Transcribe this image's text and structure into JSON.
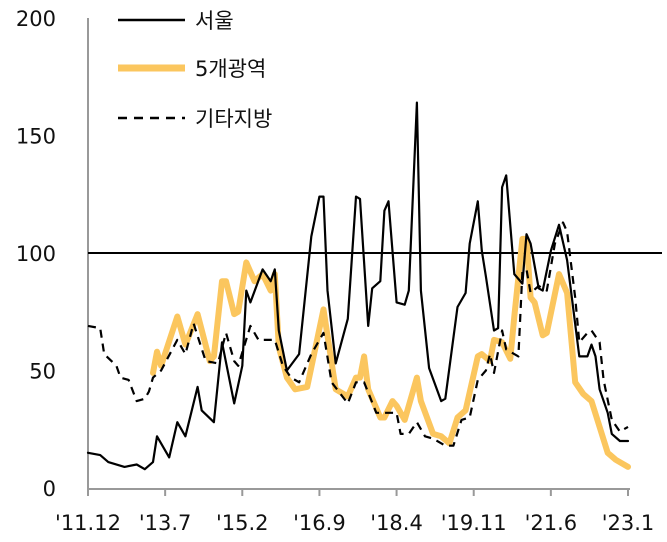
{
  "chart_data": {
    "type": "line",
    "title": "",
    "xlabel": "",
    "ylabel": "",
    "x_unit": "months since 2011.12",
    "xlim": [
      0,
      133
    ],
    "ylim": [
      0,
      200
    ],
    "yticks": [
      0,
      50,
      100,
      150,
      200
    ],
    "xticks": [
      {
        "m": 0,
        "label": "'11.12"
      },
      {
        "m": 19,
        "label": "'13.7"
      },
      {
        "m": 38,
        "label": "'15.2"
      },
      {
        "m": 57,
        "label": "'16.9"
      },
      {
        "m": 76,
        "label": "'18.4"
      },
      {
        "m": 95,
        "label": "'19.11"
      },
      {
        "m": 114,
        "label": "'21.6"
      },
      {
        "m": 133,
        "label": "'23.1"
      }
    ],
    "reference_line": 100,
    "legend_position": "top-left",
    "grid": false,
    "series": [
      {
        "name": "서울",
        "color": "#000000",
        "style": "solid",
        "points": [
          [
            0,
            15
          ],
          [
            3,
            14
          ],
          [
            5,
            11
          ],
          [
            9,
            9
          ],
          [
            12,
            10
          ],
          [
            14,
            8
          ],
          [
            16,
            11
          ],
          [
            17,
            22
          ],
          [
            20,
            13
          ],
          [
            22,
            28
          ],
          [
            24,
            22
          ],
          [
            27,
            43
          ],
          [
            28,
            33
          ],
          [
            31,
            28
          ],
          [
            33,
            62
          ],
          [
            36,
            36
          ],
          [
            38,
            52
          ],
          [
            39,
            84
          ],
          [
            40,
            79
          ],
          [
            43,
            93
          ],
          [
            45,
            88
          ],
          [
            46,
            93
          ],
          [
            47,
            67
          ],
          [
            49,
            50
          ],
          [
            52,
            57
          ],
          [
            55,
            107
          ],
          [
            57,
            124
          ],
          [
            58,
            124
          ],
          [
            59,
            84
          ],
          [
            61,
            53
          ],
          [
            64,
            72
          ],
          [
            66,
            124
          ],
          [
            67,
            123
          ],
          [
            69,
            69
          ],
          [
            70,
            85
          ],
          [
            72,
            88
          ],
          [
            73,
            118
          ],
          [
            74,
            122
          ],
          [
            76,
            79
          ],
          [
            78,
            78
          ],
          [
            79,
            84
          ],
          [
            81,
            164
          ],
          [
            82,
            84
          ],
          [
            84,
            51
          ],
          [
            87,
            37
          ],
          [
            88,
            38
          ],
          [
            91,
            77
          ],
          [
            93,
            83
          ],
          [
            94,
            104
          ],
          [
            96,
            122
          ],
          [
            97,
            101
          ],
          [
            98,
            90
          ],
          [
            100,
            67
          ],
          [
            101,
            68
          ],
          [
            102,
            128
          ],
          [
            103,
            133
          ],
          [
            105,
            91
          ],
          [
            107,
            87
          ],
          [
            108,
            108
          ],
          [
            109,
            104
          ],
          [
            111,
            85
          ],
          [
            112,
            84
          ],
          [
            114,
            101
          ],
          [
            116,
            112
          ],
          [
            118,
            97
          ],
          [
            121,
            56
          ],
          [
            123,
            56
          ],
          [
            124,
            61
          ],
          [
            125,
            56
          ],
          [
            126,
            42
          ],
          [
            128,
            32
          ],
          [
            129,
            23
          ],
          [
            131,
            20
          ],
          [
            133,
            20
          ]
        ]
      },
      {
        "name": "5개광역",
        "color": "#FBC65E",
        "style": "thick",
        "points": [
          [
            16,
            49
          ],
          [
            17,
            58
          ],
          [
            18,
            52
          ],
          [
            22,
            73
          ],
          [
            24,
            61
          ],
          [
            27,
            74
          ],
          [
            30,
            54
          ],
          [
            31,
            56
          ],
          [
            33,
            88
          ],
          [
            34,
            88
          ],
          [
            36,
            74
          ],
          [
            37,
            75
          ],
          [
            39,
            96
          ],
          [
            41,
            88
          ],
          [
            43,
            91
          ],
          [
            45,
            84
          ],
          [
            46,
            91
          ],
          [
            47,
            60
          ],
          [
            49,
            47
          ],
          [
            51,
            42
          ],
          [
            54,
            43
          ],
          [
            58,
            76
          ],
          [
            61,
            42
          ],
          [
            64,
            39
          ],
          [
            66,
            47
          ],
          [
            67,
            47
          ],
          [
            68,
            56
          ],
          [
            69,
            42
          ],
          [
            72,
            30
          ],
          [
            73,
            30
          ],
          [
            75,
            37
          ],
          [
            76,
            35
          ],
          [
            78,
            29
          ],
          [
            81,
            47
          ],
          [
            82,
            37
          ],
          [
            85,
            23
          ],
          [
            87,
            22
          ],
          [
            89,
            19
          ],
          [
            91,
            30
          ],
          [
            93,
            33
          ],
          [
            96,
            56
          ],
          [
            97,
            57
          ],
          [
            99,
            54
          ],
          [
            100,
            63
          ],
          [
            102,
            62
          ],
          [
            104,
            55
          ],
          [
            105,
            73
          ],
          [
            107,
            106
          ],
          [
            108,
            106
          ],
          [
            109,
            81
          ],
          [
            110,
            79
          ],
          [
            112,
            65
          ],
          [
            113,
            66
          ],
          [
            116,
            91
          ],
          [
            118,
            83
          ],
          [
            120,
            45
          ],
          [
            122,
            40
          ],
          [
            124,
            37
          ],
          [
            126,
            26
          ],
          [
            128,
            15
          ],
          [
            130,
            12
          ],
          [
            133,
            9
          ]
        ]
      },
      {
        "name": "기타지방",
        "color": "#000000",
        "style": "dashed",
        "points": [
          [
            0,
            69
          ],
          [
            3,
            68
          ],
          [
            4,
            57
          ],
          [
            7,
            52
          ],
          [
            8,
            47
          ],
          [
            10,
            46
          ],
          [
            12,
            37
          ],
          [
            14,
            38
          ],
          [
            15,
            41
          ],
          [
            16,
            47
          ],
          [
            18,
            50
          ],
          [
            22,
            63
          ],
          [
            24,
            57
          ],
          [
            26,
            70
          ],
          [
            29,
            54
          ],
          [
            32,
            53
          ],
          [
            34,
            66
          ],
          [
            36,
            54
          ],
          [
            37,
            52
          ],
          [
            40,
            69
          ],
          [
            42,
            63
          ],
          [
            44,
            63
          ],
          [
            46,
            63
          ],
          [
            48,
            52
          ],
          [
            50,
            47
          ],
          [
            52,
            45
          ],
          [
            55,
            57
          ],
          [
            58,
            66
          ],
          [
            60,
            45
          ],
          [
            64,
            36
          ],
          [
            66,
            45
          ],
          [
            68,
            45
          ],
          [
            71,
            32
          ],
          [
            74,
            32
          ],
          [
            76,
            32
          ],
          [
            77,
            23
          ],
          [
            79,
            23
          ],
          [
            81,
            28
          ],
          [
            83,
            22
          ],
          [
            85,
            21
          ],
          [
            88,
            18
          ],
          [
            90,
            18
          ],
          [
            92,
            29
          ],
          [
            94,
            30
          ],
          [
            96,
            46
          ],
          [
            98,
            50
          ],
          [
            99,
            57
          ],
          [
            100,
            49
          ],
          [
            102,
            67
          ],
          [
            103,
            59
          ],
          [
            106,
            56
          ],
          [
            107,
            92
          ],
          [
            108,
            93
          ],
          [
            109,
            83
          ],
          [
            111,
            86
          ],
          [
            113,
            84
          ],
          [
            115,
            104
          ],
          [
            117,
            113
          ],
          [
            118,
            109
          ],
          [
            120,
            81
          ],
          [
            121,
            62
          ],
          [
            123,
            66
          ],
          [
            124,
            67
          ],
          [
            126,
            62
          ],
          [
            127,
            46
          ],
          [
            129,
            29
          ],
          [
            131,
            24
          ],
          [
            133,
            26
          ]
        ]
      }
    ]
  }
}
